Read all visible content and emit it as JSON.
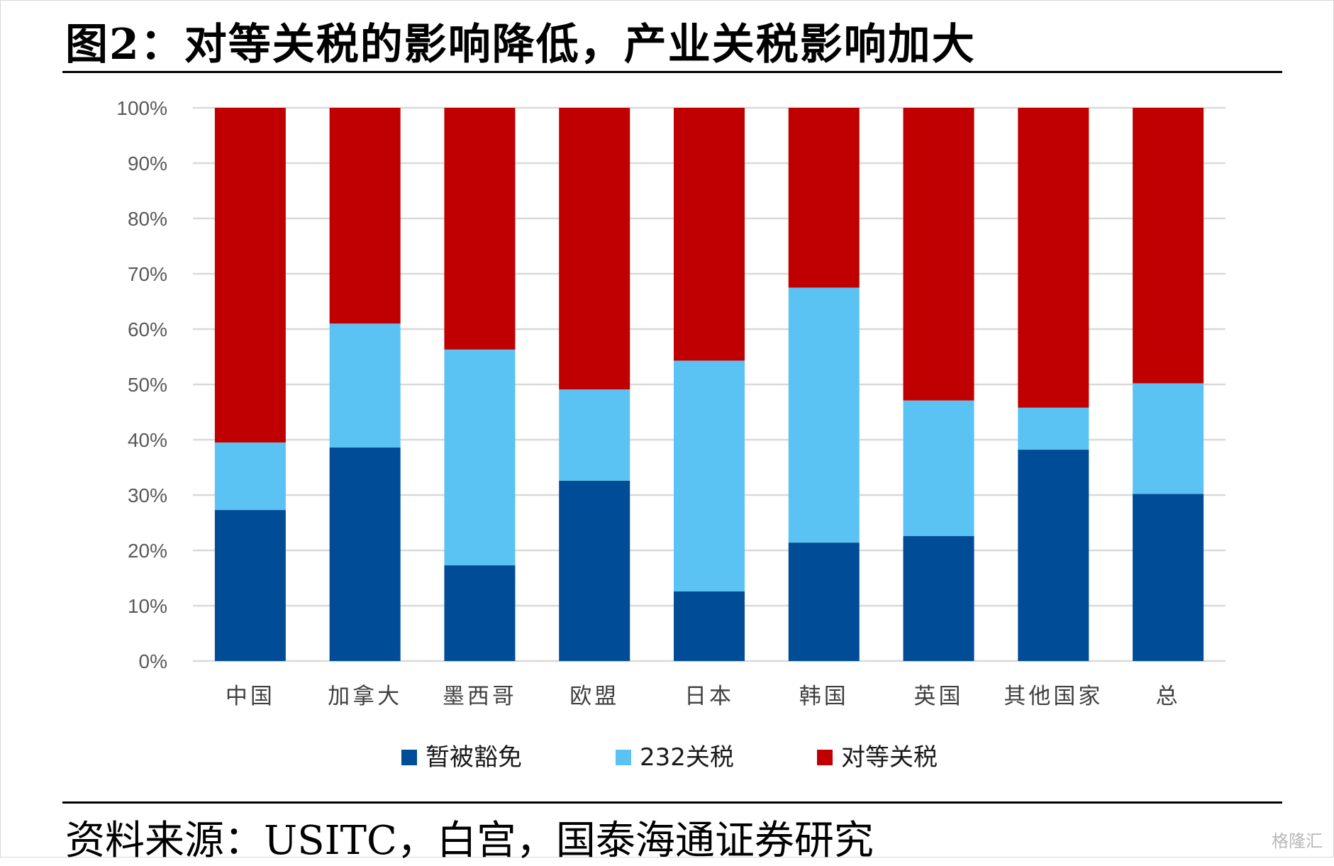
{
  "figure": {
    "title": "图2：对等关税的影响降低，产业关税影响加大",
    "source": "资料来源：USITC，白宫，国泰海通证券研究",
    "watermark": "格隆汇"
  },
  "colors": {
    "暂被豁免": "#004c97",
    "232关税": "#5bc2f4",
    "对等关税": "#c00000",
    "grid": "#d9d9d9"
  },
  "chart_data": {
    "type": "bar",
    "stacked": true,
    "percent": true,
    "categories": [
      "中国",
      "加拿大",
      "墨西哥",
      "欧盟",
      "日本",
      "韩国",
      "英国",
      "其他国家",
      "总"
    ],
    "series": [
      {
        "name": "暂被豁免",
        "values": [
          27.3,
          38.6,
          17.3,
          32.6,
          12.6,
          21.4,
          22.6,
          38.2,
          30.2
        ]
      },
      {
        "name": "232关税",
        "values": [
          12.2,
          22.4,
          39.0,
          16.5,
          41.7,
          46.1,
          24.5,
          7.6,
          20.0
        ]
      },
      {
        "name": "对等关税",
        "values": [
          60.5,
          39.0,
          43.7,
          50.9,
          45.7,
          32.5,
          52.9,
          54.2,
          49.8
        ]
      }
    ],
    "yticks": [
      "0%",
      "10%",
      "20%",
      "30%",
      "40%",
      "50%",
      "60%",
      "70%",
      "80%",
      "90%",
      "100%"
    ],
    "ylim": [
      0,
      100
    ],
    "grid": true,
    "legend_position": "bottom"
  }
}
